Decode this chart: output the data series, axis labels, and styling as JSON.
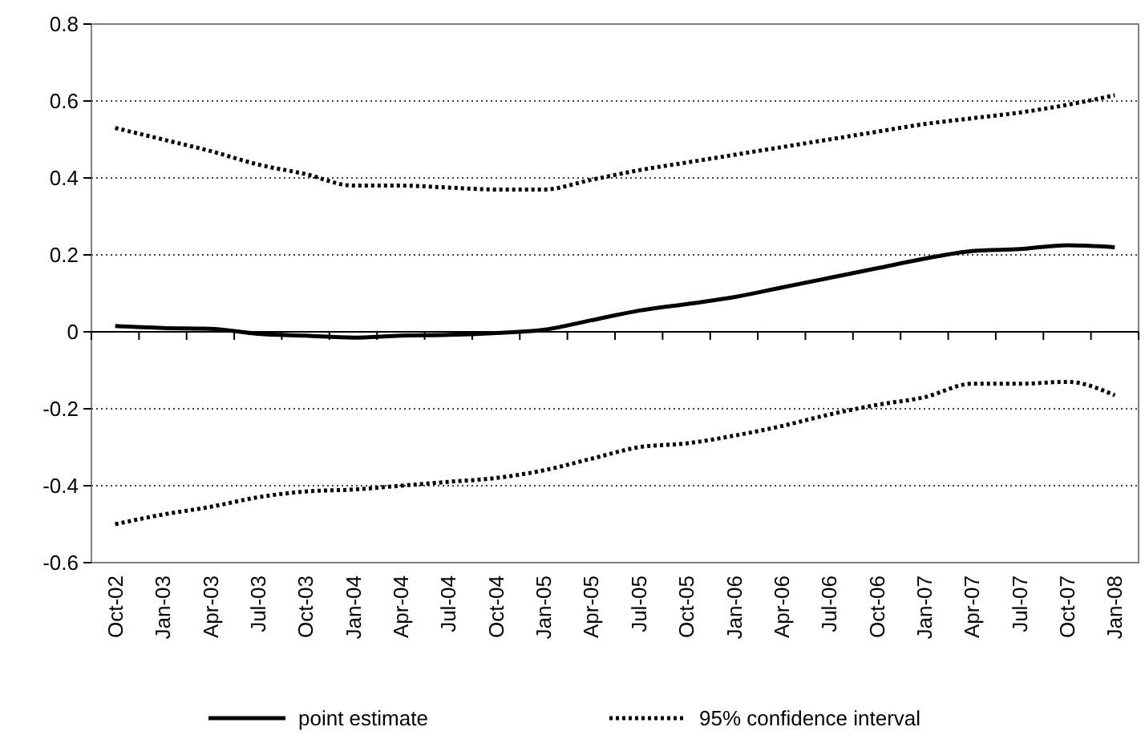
{
  "chart_data": {
    "type": "line",
    "categories": [
      "Oct-02",
      "Jan-03",
      "Apr-03",
      "Jul-03",
      "Oct-03",
      "Jan-04",
      "Apr-04",
      "Jul-04",
      "Oct-04",
      "Jan-05",
      "Apr-05",
      "Jul-05",
      "Oct-05",
      "Jan-06",
      "Apr-06",
      "Jul-06",
      "Oct-06",
      "Jan-07",
      "Apr-07",
      "Jul-07",
      "Oct-07",
      "Jan-08"
    ],
    "series": [
      {
        "name": "point estimate",
        "color": "#000000",
        "line_style": "solid",
        "values": [
          0.015,
          0.01,
          0.008,
          -0.005,
          -0.01,
          -0.015,
          -0.01,
          -0.008,
          -0.003,
          0.005,
          0.03,
          0.055,
          0.072,
          0.09,
          0.115,
          0.14,
          0.165,
          0.19,
          0.21,
          0.215,
          0.225,
          0.22
        ]
      },
      {
        "name": "95% confidence interval",
        "color": "#000000",
        "line_style": "dotted",
        "values": [
          0.53,
          0.5,
          0.47,
          0.435,
          0.41,
          0.38,
          0.38,
          0.375,
          0.37,
          0.37,
          0.395,
          0.42,
          0.44,
          0.46,
          0.48,
          0.5,
          0.52,
          0.54,
          0.555,
          0.57,
          0.59,
          0.615
        ]
      },
      {
        "color": "#000000",
        "line_style": "dotted",
        "values": [
          -0.5,
          -0.475,
          -0.455,
          -0.43,
          -0.415,
          -0.41,
          -0.4,
          -0.39,
          -0.38,
          -0.36,
          -0.33,
          -0.3,
          -0.29,
          -0.27,
          -0.245,
          -0.215,
          -0.19,
          -0.17,
          -0.135,
          -0.135,
          -0.13,
          -0.165
        ]
      }
    ],
    "ylim": [
      -0.6,
      0.8
    ],
    "yticks": [
      -0.6,
      -0.4,
      -0.2,
      0,
      0.2,
      0.4,
      0.6,
      0.8
    ],
    "grid": "y",
    "legend": "bottom"
  }
}
